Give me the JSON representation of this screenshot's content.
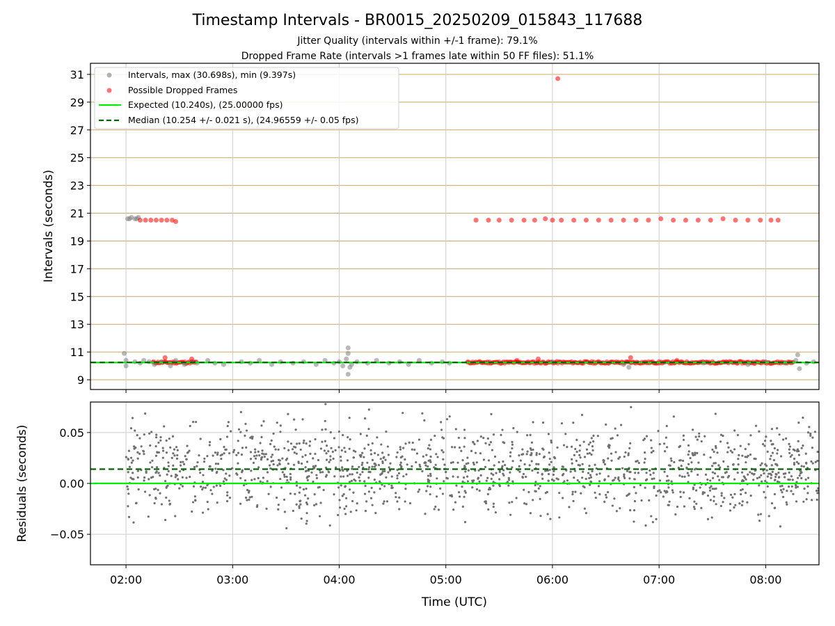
{
  "figure": {
    "title": "Timestamp Intervals - BR0015_20250209_015843_117688",
    "subtitle_1": "Jitter Quality (intervals within +/-1 frame): 79.1%",
    "subtitle_2": "Dropped Frame Rate (intervals >1 frames late within 50 FF files): 51.1%"
  },
  "colors": {
    "intervals": "#808080",
    "dropped": "#ff0000",
    "expected": "#00ee00",
    "median": "#006400",
    "upper_grid": "#c8a862",
    "grid": "#cccccc"
  },
  "chart_data": [
    {
      "type": "scatter",
      "ylabel": "Intervals (seconds)",
      "xlim": [
        "01:40",
        "08:30"
      ],
      "ylim": [
        8.3,
        31.8
      ],
      "yticks": [
        9,
        11,
        13,
        15,
        17,
        19,
        21,
        23,
        25,
        27,
        29,
        31
      ],
      "grid": "on",
      "legend_position": "top-left",
      "legend": [
        {
          "label": "Intervals, max (30.698s), min (9.397s)",
          "marker": "circle",
          "color": "#808080"
        },
        {
          "label": "Possible Dropped Frames",
          "marker": "circle",
          "color": "#ff0000"
        },
        {
          "label": "Expected (10.240s), (25.00000 fps)",
          "marker": "solid-line",
          "color": "#00ee00"
        },
        {
          "label": "Median (10.254 +/- 0.021 s), (24.96559 +/- 0.05 fps)",
          "marker": "dashed-line",
          "color": "#006400"
        }
      ],
      "series": [
        {
          "name": "Intervals, max (30.698s), min (9.397s)",
          "kind": "gray_points",
          "points": [
            [
              "01:59",
              10.9
            ],
            [
              "02:00",
              10.0
            ],
            [
              "02:00",
              10.4
            ],
            [
              "02:01",
              20.6
            ],
            [
              "02:02",
              20.6
            ],
            [
              "02:03",
              20.7
            ],
            [
              "02:05",
              20.6
            ],
            [
              "02:06",
              20.6
            ],
            [
              "02:07",
              20.7
            ],
            [
              "02:05",
              10.3
            ],
            [
              "02:08",
              10.2
            ],
            [
              "02:10",
              10.4
            ],
            [
              "02:13",
              10.3
            ],
            [
              "02:16",
              10.1
            ],
            [
              "02:20",
              10.3
            ],
            [
              "02:25",
              10.0
            ],
            [
              "02:28",
              10.4
            ],
            [
              "02:33",
              10.1
            ],
            [
              "02:37",
              10.3
            ],
            [
              "02:40",
              10.2
            ],
            [
              "02:46",
              10.4
            ],
            [
              "02:50",
              10.2
            ],
            [
              "02:55",
              10.1
            ],
            [
              "03:05",
              10.3
            ],
            [
              "03:10",
              10.2
            ],
            [
              "03:15",
              10.4
            ],
            [
              "03:22",
              10.1
            ],
            [
              "03:27",
              10.3
            ],
            [
              "03:34",
              10.2
            ],
            [
              "03:40",
              10.3
            ],
            [
              "03:47",
              10.1
            ],
            [
              "03:52",
              10.4
            ],
            [
              "03:57",
              10.2
            ],
            [
              "04:00",
              10.3
            ],
            [
              "04:02",
              10.0
            ],
            [
              "04:04",
              10.5
            ],
            [
              "04:05",
              11.3
            ],
            [
              "04:05",
              10.9
            ],
            [
              "04:05",
              9.4
            ],
            [
              "04:06",
              9.9
            ],
            [
              "04:07",
              10.1
            ],
            [
              "04:10",
              10.3
            ],
            [
              "04:16",
              10.2
            ],
            [
              "04:21",
              10.4
            ],
            [
              "04:28",
              10.2
            ],
            [
              "04:34",
              10.3
            ],
            [
              "04:39",
              10.1
            ],
            [
              "04:45",
              10.4
            ],
            [
              "04:52",
              10.2
            ],
            [
              "04:58",
              10.3
            ],
            [
              "05:02",
              10.2
            ],
            [
              "06:00",
              10.3
            ],
            [
              "06:40",
              10.1
            ],
            [
              "06:43",
              9.9
            ],
            [
              "07:25",
              10.2
            ],
            [
              "07:50",
              10.1
            ],
            [
              "08:00",
              10.3
            ],
            [
              "08:11",
              10.2
            ],
            [
              "08:17",
              10.4
            ],
            [
              "08:18",
              10.8
            ],
            [
              "08:19",
              9.8
            ],
            [
              "08:23",
              10.2
            ],
            [
              "08:27",
              10.3
            ]
          ]
        },
        {
          "name": "Possible Dropped Frames",
          "kind": "red_points",
          "points": [
            [
              "02:08",
              20.5
            ],
            [
              "02:11",
              20.5
            ],
            [
              "02:14",
              20.5
            ],
            [
              "02:17",
              20.5
            ],
            [
              "02:20",
              20.5
            ],
            [
              "02:23",
              20.5
            ],
            [
              "02:26",
              20.5
            ],
            [
              "02:28",
              20.4
            ],
            [
              "02:22",
              10.6
            ],
            [
              "02:37",
              10.5
            ],
            [
              "05:17",
              20.5
            ],
            [
              "05:24",
              20.5
            ],
            [
              "05:30",
              20.5
            ],
            [
              "05:37",
              20.5
            ],
            [
              "05:44",
              20.5
            ],
            [
              "05:50",
              20.5
            ],
            [
              "05:56",
              20.6
            ],
            [
              "06:00",
              20.5
            ],
            [
              "06:05",
              20.5
            ],
            [
              "06:12",
              20.5
            ],
            [
              "06:19",
              20.5
            ],
            [
              "06:26",
              20.5
            ],
            [
              "06:33",
              20.5
            ],
            [
              "06:40",
              20.5
            ],
            [
              "06:47",
              20.5
            ],
            [
              "06:54",
              20.5
            ],
            [
              "07:01",
              20.6
            ],
            [
              "07:08",
              20.5
            ],
            [
              "07:15",
              20.5
            ],
            [
              "07:22",
              20.5
            ],
            [
              "07:29",
              20.5
            ],
            [
              "07:36",
              20.6
            ],
            [
              "07:43",
              20.5
            ],
            [
              "07:50",
              20.5
            ],
            [
              "07:57",
              20.5
            ],
            [
              "08:03",
              20.5
            ],
            [
              "08:07",
              20.5
            ],
            [
              "06:03",
              30.698
            ],
            [
              "05:52",
              10.5
            ],
            [
              "06:44",
              10.6
            ],
            [
              "05:40",
              10.4
            ],
            [
              "07:10",
              10.4
            ]
          ]
        }
      ],
      "bands": [
        {
          "name": "Possible Dropped Frames",
          "color": "#ff0000",
          "from": "02:15",
          "to": "02:40",
          "value": 10.25
        },
        {
          "name": "Possible Dropped Frames",
          "color": "#ff0000",
          "from": "05:12",
          "to": "08:16",
          "value": 10.25
        }
      ],
      "lines": [
        {
          "name": "Expected (10.240s), (25.00000 fps)",
          "value": 10.24,
          "style": "solid",
          "color": "#00ee00"
        },
        {
          "name": "Median (10.254 +/- 0.021 s), (24.96559 +/- 0.05 fps)",
          "value": 10.254,
          "style": "dashed",
          "color": "#006400"
        }
      ]
    },
    {
      "type": "scatter",
      "xlabel": "Time (UTC)",
      "ylabel": "Residuals (seconds)",
      "xlim": [
        "01:40",
        "08:30"
      ],
      "ylim": [
        -0.08,
        0.08
      ],
      "yticks": [
        {
          "value": 0.05,
          "label": "0.05"
        },
        {
          "value": 0.0,
          "label": "0.00"
        },
        {
          "value": -0.05,
          "label": "−0.05"
        }
      ],
      "xticks": [
        "02:00",
        "03:00",
        "04:00",
        "05:00",
        "06:00",
        "07:00",
        "08:00"
      ],
      "grid": "on",
      "residuals": {
        "from": "02:00",
        "to": "08:30",
        "mean": 0.014,
        "sd": 0.022,
        "count": 1500,
        "color": "#707070"
      },
      "lines": [
        {
          "value": 0.0,
          "style": "solid",
          "color": "#00ee00"
        },
        {
          "value": 0.014,
          "style": "dashed",
          "color": "#006400"
        }
      ]
    }
  ]
}
